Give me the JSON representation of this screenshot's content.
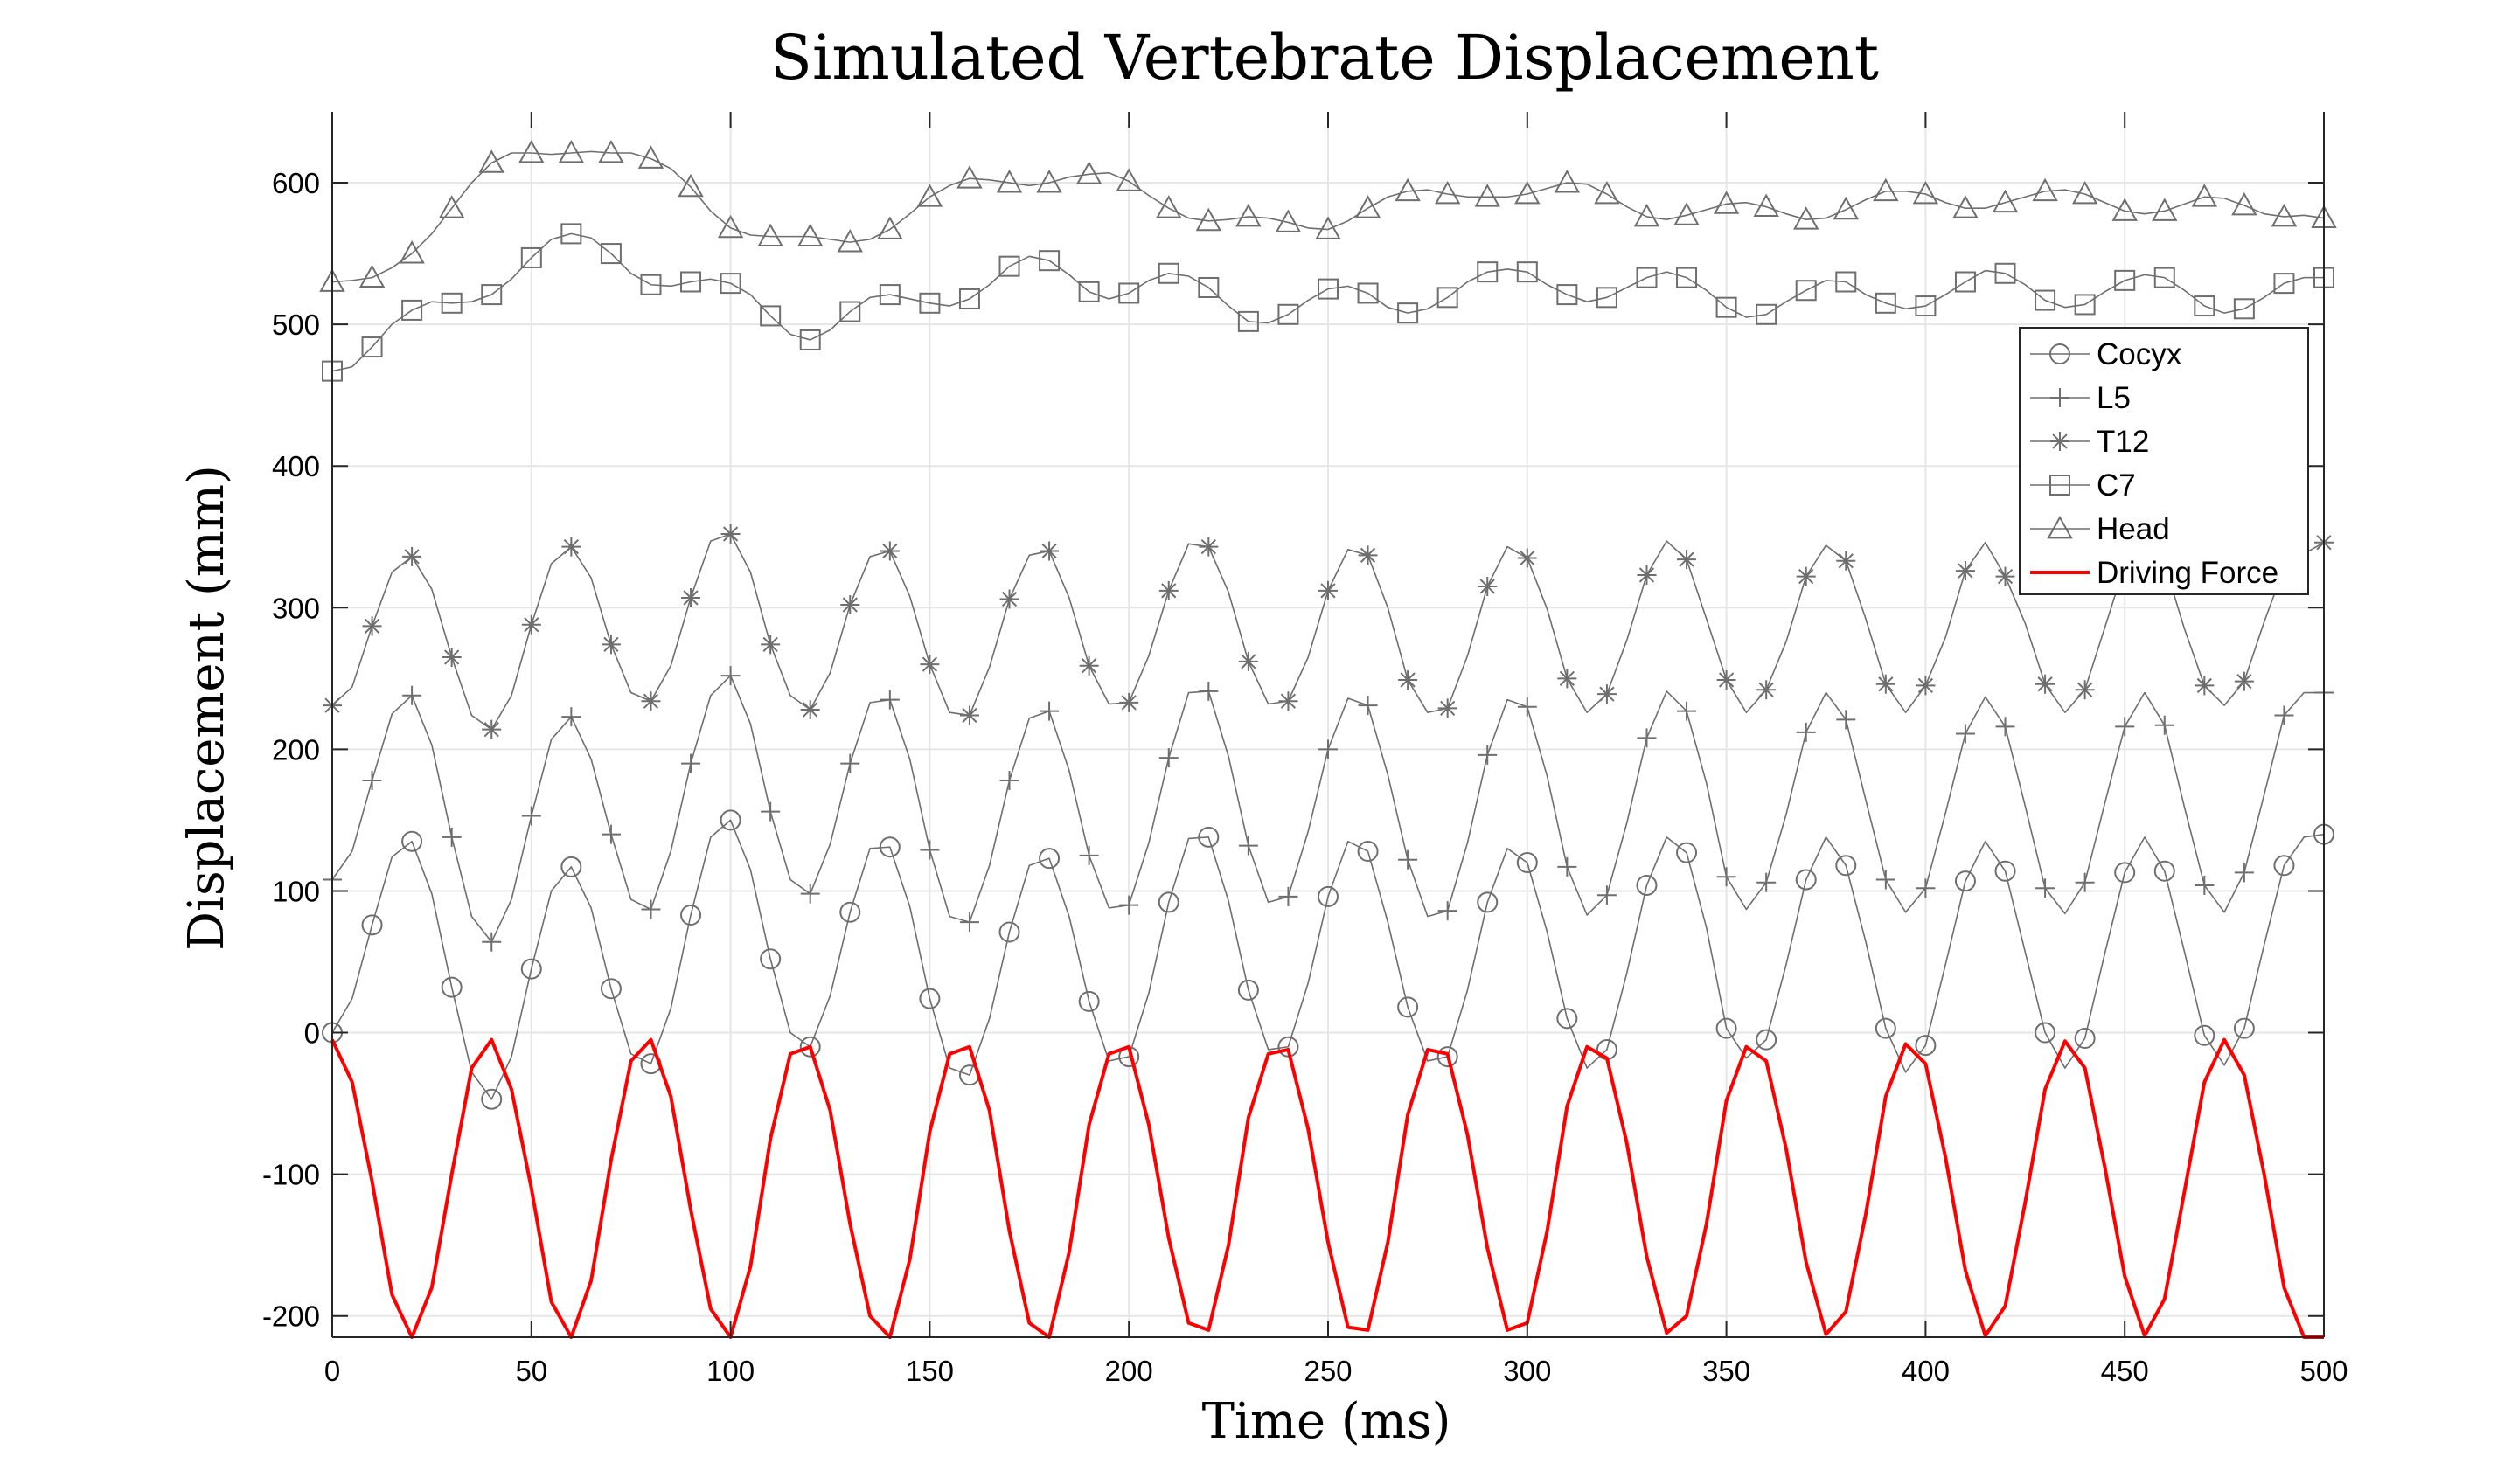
{
  "chart_data": {
    "type": "line",
    "title": "Simulated Vertebrate Displacement",
    "xlabel": "Time (ms)",
    "ylabel": "Displacement (mm)",
    "xlim": [
      0,
      500
    ],
    "ylim": [
      -215,
      650
    ],
    "xticks": [
      0,
      50,
      100,
      150,
      200,
      250,
      300,
      350,
      400,
      450,
      500
    ],
    "xtick_labels": [
      "0",
      "50",
      "100",
      "150",
      "200",
      "250",
      "300",
      "350",
      "400",
      "450",
      "500"
    ],
    "yticks": [
      -200,
      -100,
      0,
      100,
      200,
      300,
      400,
      500,
      600
    ],
    "ytick_labels": [
      "-200",
      "-100",
      "0",
      "100",
      "200",
      "300",
      "400",
      "500",
      "600"
    ],
    "grid": true,
    "legend_position": "right",
    "x": [
      0,
      5,
      10,
      15,
      20,
      25,
      30,
      35,
      40,
      45,
      50,
      55,
      60,
      65,
      70,
      75,
      80,
      85,
      90,
      95,
      100,
      105,
      110,
      115,
      120,
      125,
      130,
      135,
      140,
      145,
      150,
      155,
      160,
      165,
      170,
      175,
      180,
      185,
      190,
      195,
      200,
      205,
      210,
      215,
      220,
      225,
      230,
      235,
      240,
      245,
      250,
      255,
      260,
      265,
      270,
      275,
      280,
      285,
      290,
      295,
      300,
      305,
      310,
      315,
      320,
      325,
      330,
      335,
      340,
      345,
      350,
      355,
      360,
      365,
      370,
      375,
      380,
      385,
      390,
      395,
      400,
      405,
      410,
      415,
      420,
      425,
      430,
      435,
      440,
      445,
      450,
      455,
      460,
      465,
      470,
      475,
      480,
      485,
      490,
      495,
      500
    ],
    "series": [
      {
        "name": "Cocyx",
        "marker": "circle",
        "color": "#6e6e6e",
        "values": [
          0,
          24,
          76,
          124,
          135,
          98,
          32,
          -28,
          -47,
          -17,
          45,
          100,
          117,
          88,
          31,
          -15,
          -22,
          17,
          83,
          138,
          150,
          115,
          52,
          0,
          -10,
          26,
          85,
          130,
          131,
          89,
          24,
          -25,
          -30,
          10,
          71,
          118,
          123,
          82,
          22,
          -20,
          -17,
          28,
          92,
          137,
          138,
          93,
          30,
          -12,
          -10,
          35,
          96,
          135,
          128,
          78,
          18,
          -20,
          -17,
          30,
          92,
          130,
          120,
          71,
          10,
          -25,
          -12,
          42,
          104,
          138,
          127,
          74,
          3,
          -18,
          -5,
          48,
          108,
          138,
          118,
          64,
          3,
          -28,
          -9,
          48,
          107,
          135,
          114,
          57,
          0,
          -25,
          -4,
          56,
          113,
          138,
          114,
          57,
          -2,
          -23,
          3,
          62,
          118,
          138,
          140
        ]
      },
      {
        "name": "L5",
        "marker": "plus",
        "color": "#6e6e6e",
        "values": [
          108,
          128,
          178,
          225,
          238,
          203,
          138,
          82,
          64,
          94,
          153,
          207,
          223,
          193,
          140,
          94,
          87,
          128,
          190,
          238,
          252,
          218,
          156,
          108,
          98,
          133,
          190,
          233,
          235,
          193,
          129,
          82,
          78,
          118,
          178,
          222,
          227,
          185,
          125,
          88,
          90,
          134,
          194,
          240,
          241,
          195,
          132,
          92,
          96,
          142,
          200,
          236,
          231,
          182,
          122,
          82,
          86,
          134,
          196,
          235,
          230,
          181,
          117,
          83,
          97,
          148,
          208,
          241,
          227,
          176,
          110,
          87,
          106,
          154,
          212,
          240,
          221,
          164,
          108,
          85,
          102,
          155,
          211,
          237,
          216,
          160,
          102,
          84,
          106,
          162,
          216,
          240,
          217,
          159,
          104,
          85,
          113,
          168,
          224,
          240,
          240
        ]
      },
      {
        "name": "T12",
        "marker": "asterisk",
        "color": "#6e6e6e",
        "values": [
          231,
          244,
          287,
          325,
          336,
          313,
          265,
          224,
          214,
          238,
          288,
          331,
          343,
          321,
          274,
          240,
          234,
          259,
          307,
          347,
          352,
          325,
          274,
          238,
          228,
          254,
          302,
          336,
          340,
          308,
          260,
          226,
          224,
          258,
          306,
          337,
          340,
          307,
          259,
          232,
          233,
          266,
          312,
          345,
          343,
          311,
          262,
          232,
          234,
          265,
          312,
          341,
          337,
          300,
          249,
          226,
          229,
          266,
          315,
          343,
          335,
          299,
          250,
          226,
          239,
          277,
          323,
          347,
          334,
          292,
          249,
          226,
          242,
          276,
          322,
          344,
          333,
          292,
          246,
          226,
          245,
          279,
          326,
          346,
          322,
          289,
          246,
          226,
          242,
          286,
          330,
          342,
          331,
          285,
          245,
          231,
          248,
          290,
          328,
          338,
          346
        ]
      },
      {
        "name": "C7",
        "marker": "square",
        "color": "#6e6e6e",
        "values": [
          467,
          470,
          484,
          500,
          510,
          516,
          515,
          516,
          521,
          532,
          547,
          560,
          564,
          561,
          550,
          536,
          528,
          527,
          530,
          532,
          529,
          521,
          506,
          493,
          489,
          496,
          509,
          519,
          521,
          518,
          515,
          513,
          518,
          528,
          541,
          548,
          545,
          535,
          523,
          518,
          522,
          531,
          536,
          534,
          526,
          513,
          502,
          501,
          507,
          517,
          525,
          527,
          522,
          512,
          508,
          511,
          519,
          530,
          537,
          539,
          537,
          528,
          521,
          516,
          519,
          526,
          533,
          537,
          533,
          524,
          512,
          505,
          507,
          516,
          524,
          531,
          530,
          521,
          515,
          511,
          513,
          521,
          530,
          538,
          536,
          528,
          517,
          512,
          514,
          523,
          531,
          535,
          533,
          524,
          513,
          508,
          511,
          519,
          529,
          533,
          533
        ]
      },
      {
        "name": "Head",
        "marker": "triangle",
        "color": "#6e6e6e",
        "values": [
          530,
          531,
          533,
          540,
          550,
          564,
          582,
          600,
          614,
          621,
          621,
          620,
          621,
          622,
          621,
          621,
          617,
          610,
          597,
          580,
          568,
          563,
          562,
          562,
          562,
          560,
          558,
          560,
          567,
          578,
          590,
          598,
          603,
          602,
          600,
          598,
          600,
          604,
          606,
          607,
          601,
          591,
          582,
          575,
          573,
          574,
          576,
          575,
          572,
          568,
          567,
          573,
          582,
          590,
          594,
          595,
          592,
          590,
          590,
          590,
          592,
          596,
          600,
          599,
          592,
          583,
          576,
          574,
          577,
          581,
          585,
          586,
          583,
          578,
          574,
          575,
          581,
          588,
          594,
          594,
          592,
          586,
          582,
          582,
          586,
          590,
          594,
          595,
          592,
          586,
          580,
          578,
          580,
          585,
          590,
          589,
          584,
          578,
          576,
          577,
          575
        ]
      },
      {
        "name": "Driving Force",
        "marker": "none",
        "color": "#ff0000",
        "values": [
          -5,
          -35,
          -105,
          -185,
          -215,
          -180,
          -100,
          -25,
          -5,
          -40,
          -110,
          -190,
          -215,
          -175,
          -90,
          -20,
          -5,
          -45,
          -125,
          -195,
          -215,
          -165,
          -75,
          -15,
          -10,
          -55,
          -135,
          -200,
          -215,
          -160,
          -70,
          -15,
          -10,
          -55,
          -140,
          -205,
          -215,
          -155,
          -65,
          -15,
          -10,
          -65,
          -145,
          -205,
          -210,
          -150,
          -60,
          -15,
          -12,
          -68,
          -148,
          -208,
          -210,
          -148,
          -58,
          -12,
          -15,
          -72,
          -152,
          -210,
          -205,
          -140,
          -52,
          -10,
          -18,
          -78,
          -158,
          -212,
          -200,
          -135,
          -48,
          -10,
          -20,
          -82,
          -162,
          -213,
          -197,
          -128,
          -45,
          -8,
          -22,
          -88,
          -168,
          -214,
          -193,
          -120,
          -40,
          -6,
          -25,
          -95,
          -172,
          -214,
          -188,
          -112,
          -35,
          -5,
          -30,
          -100,
          -180,
          -215,
          -215
        ]
      }
    ]
  }
}
